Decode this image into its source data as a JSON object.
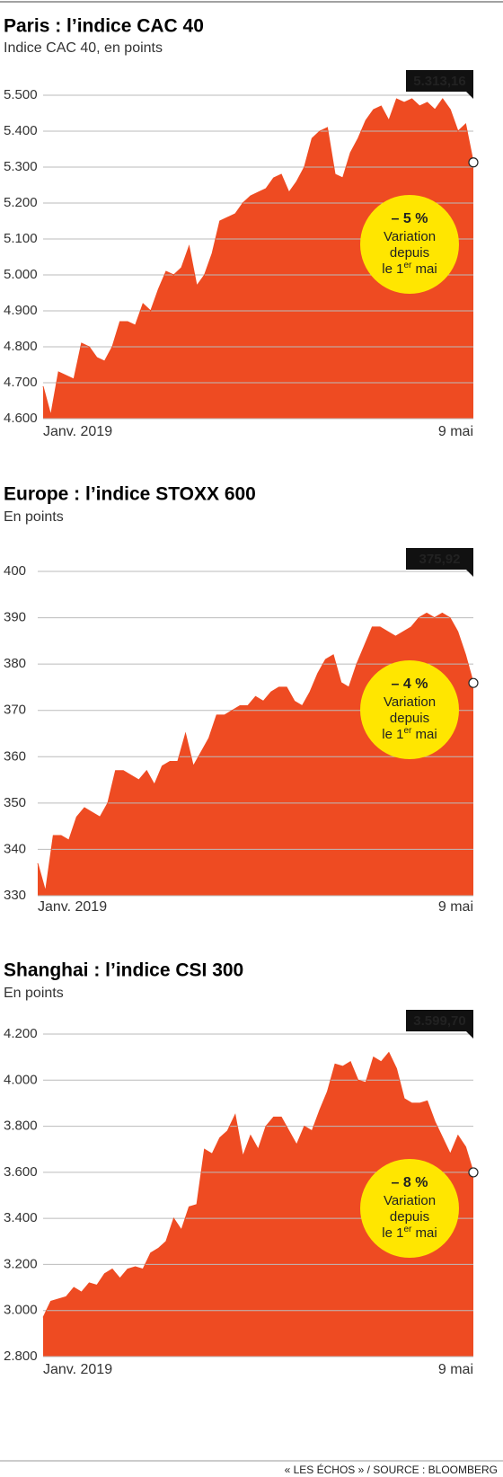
{
  "chart_data": [
    {
      "type": "area",
      "title": "Paris : l’indice CAC 40",
      "subtitle": "Indice CAC 40, en points",
      "color": "#ee4b22",
      "categories": [
        "Janv. 2019",
        null,
        null,
        null,
        null,
        null,
        null,
        null,
        null,
        null,
        null,
        null,
        null,
        null,
        null,
        null,
        null,
        null,
        null,
        null,
        null,
        null,
        null,
        null,
        null,
        null,
        null,
        null,
        null,
        null,
        null,
        null,
        null,
        null,
        null,
        null,
        null,
        null,
        null,
        null,
        null,
        null,
        null,
        null,
        null,
        null,
        null,
        null,
        null,
        null,
        null,
        null,
        null,
        null,
        null,
        null,
        "9 mai"
      ],
      "values": [
        4690,
        4610,
        4730,
        4720,
        4710,
        4810,
        4800,
        4770,
        4760,
        4800,
        4870,
        4870,
        4860,
        4920,
        4900,
        4960,
        5010,
        5000,
        5020,
        5080,
        4970,
        5000,
        5060,
        5150,
        5160,
        5170,
        5200,
        5220,
        5230,
        5240,
        5270,
        5280,
        5230,
        5260,
        5300,
        5380,
        5400,
        5410,
        5280,
        5270,
        5340,
        5380,
        5430,
        5460,
        5470,
        5430,
        5490,
        5480,
        5490,
        5470,
        5480,
        5460,
        5490,
        5460,
        5400,
        5420,
        5313.16
      ],
      "last_label": "5.313,16",
      "ylim": [
        4600,
        5500
      ],
      "yticks": [
        {
          "value": 4600,
          "label": "4.600"
        },
        {
          "value": 4700,
          "label": "4.700"
        },
        {
          "value": 4800,
          "label": "4.800"
        },
        {
          "value": 4900,
          "label": "4.900"
        },
        {
          "value": 5000,
          "label": "5.000"
        },
        {
          "value": 5100,
          "label": "5.100"
        },
        {
          "value": 5200,
          "label": "5.200"
        },
        {
          "value": 5300,
          "label": "5.300"
        },
        {
          "value": 5400,
          "label": "5.400"
        },
        {
          "value": 5500,
          "label": "5.500"
        }
      ],
      "grid": true,
      "annotation": {
        "change": "– 5 %",
        "lines": [
          "Variation",
          "depuis"
        ],
        "last_line": [
          "le 1",
          "er",
          " mai"
        ]
      }
    },
    {
      "type": "area",
      "title": "Europe : l’indice STOXX 600",
      "subtitle": "En points",
      "color": "#ee4b22",
      "categories": [
        "Janv. 2019",
        null,
        null,
        null,
        null,
        null,
        null,
        null,
        null,
        null,
        null,
        null,
        null,
        null,
        null,
        null,
        null,
        null,
        null,
        null,
        null,
        null,
        null,
        null,
        null,
        null,
        null,
        null,
        null,
        null,
        null,
        null,
        null,
        null,
        null,
        null,
        null,
        null,
        null,
        null,
        null,
        null,
        null,
        null,
        null,
        null,
        null,
        null,
        null,
        null,
        null,
        null,
        null,
        null,
        null,
        null,
        "9 mai"
      ],
      "values": [
        337,
        331,
        343,
        343,
        342,
        347,
        349,
        348,
        347,
        350,
        357,
        357,
        356,
        355,
        357,
        354,
        358,
        359,
        359,
        365,
        358,
        361,
        364,
        369,
        369,
        370,
        371,
        371,
        373,
        372,
        374,
        375,
        375,
        372,
        371,
        374,
        378,
        381,
        382,
        376,
        375,
        380,
        384,
        388,
        388,
        387,
        386,
        387,
        388,
        390,
        391,
        390,
        391,
        390,
        387,
        382,
        375.92
      ],
      "last_label": "375,92",
      "ylim": [
        330,
        400
      ],
      "yticks": [
        330,
        340,
        350,
        360,
        370,
        380,
        390,
        400
      ],
      "grid": true,
      "annotation": {
        "change": "– 4 %",
        "lines": [
          "Variation",
          "depuis"
        ],
        "last_line": [
          "le 1",
          "er",
          " mai"
        ]
      }
    },
    {
      "type": "area",
      "title": "Shanghai : l’indice CSI 300",
      "subtitle": "En points",
      "color": "#ee4b22",
      "categories": [
        "Janv. 2019",
        null,
        null,
        null,
        null,
        null,
        null,
        null,
        null,
        null,
        null,
        null,
        null,
        null,
        null,
        null,
        null,
        null,
        null,
        null,
        null,
        null,
        null,
        null,
        null,
        null,
        null,
        null,
        null,
        null,
        null,
        null,
        null,
        null,
        null,
        null,
        null,
        null,
        null,
        null,
        null,
        null,
        null,
        null,
        null,
        null,
        null,
        null,
        null,
        null,
        null,
        null,
        null,
        null,
        null,
        null,
        "9 mai"
      ],
      "values": [
        2970,
        3040,
        3050,
        3060,
        3100,
        3080,
        3120,
        3110,
        3160,
        3180,
        3140,
        3180,
        3190,
        3180,
        3250,
        3270,
        3300,
        3400,
        3350,
        3450,
        3460,
        3700,
        3680,
        3750,
        3780,
        3850,
        3670,
        3760,
        3700,
        3800,
        3840,
        3840,
        3780,
        3720,
        3800,
        3780,
        3870,
        3950,
        4070,
        4060,
        4080,
        4000,
        3990,
        4100,
        4080,
        4120,
        4050,
        3920,
        3900,
        3900,
        3910,
        3820,
        3750,
        3680,
        3760,
        3710,
        3599.7
      ],
      "last_label": "3.599,70",
      "ylim": [
        2800,
        4200
      ],
      "yticks": [
        {
          "value": 2800,
          "label": "2.800"
        },
        {
          "value": 3000,
          "label": "3.000"
        },
        {
          "value": 3200,
          "label": "3.200"
        },
        {
          "value": 3400,
          "label": "3.400"
        },
        {
          "value": 3600,
          "label": "3.600"
        },
        {
          "value": 3800,
          "label": "3.800"
        },
        {
          "value": 4000,
          "label": "4.000"
        },
        {
          "value": 4200,
          "label": "4.200"
        }
      ],
      "grid": true,
      "annotation": {
        "change": "– 8 %",
        "lines": [
          "Variation",
          "depuis"
        ],
        "last_line": [
          "le 1",
          "er",
          " mai"
        ]
      }
    }
  ],
  "source": "« LES ÉCHOS » / SOURCE : BLOOMBERG"
}
